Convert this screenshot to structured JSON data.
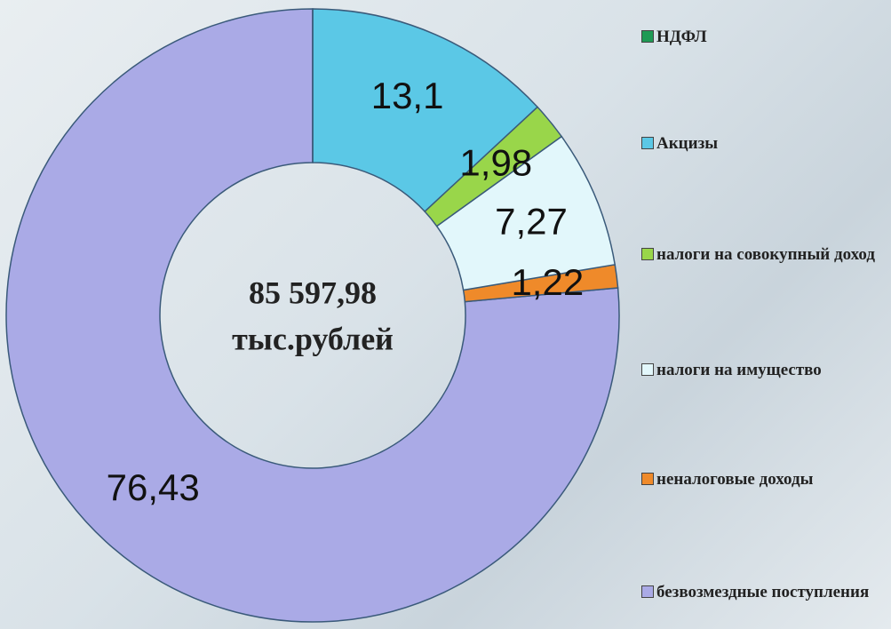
{
  "chart_data": {
    "type": "donut",
    "center_text": [
      "85 597,98",
      "тыс.рублей"
    ],
    "categories": [
      "НДФЛ",
      "Акцизы",
      "налоги на совокупный доход",
      "налоги на имущество",
      "неналоговые доходы",
      "безвозмездные поступления"
    ],
    "values": [
      0,
      13.1,
      1.98,
      7.27,
      1.22,
      76.43
    ],
    "value_labels": [
      null,
      "13,1",
      "1,98",
      "7,27",
      "1,22",
      "76,43"
    ],
    "colors": [
      "#1f9a55",
      "#5bc8e6",
      "#99d64a",
      "#e2f7fb",
      "#ef8a2a",
      "#aaaae6"
    ],
    "legend": "right"
  }
}
